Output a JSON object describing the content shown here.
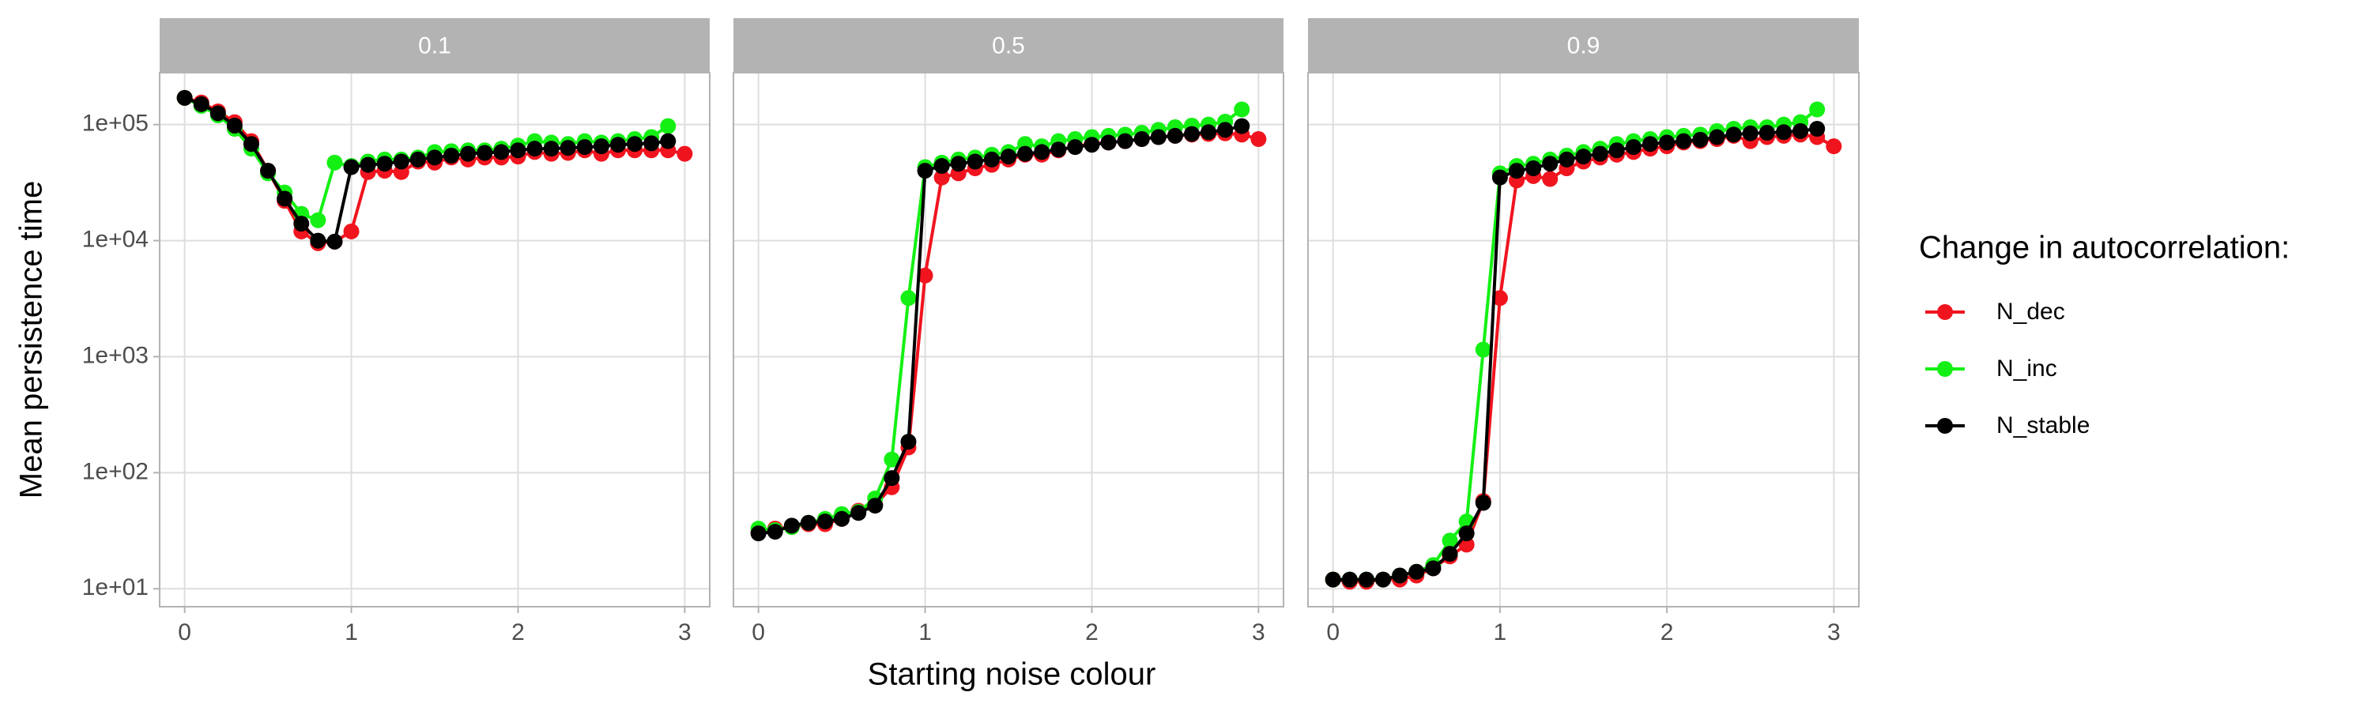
{
  "x_label": "Starting noise colour",
  "y_label": "Mean persistence time",
  "legend_title": "Change in autocorrelation:",
  "chart_data": [
    {
      "type": "line",
      "title": "0.1",
      "log_y": true,
      "grid": true,
      "x": [
        0,
        0.1,
        0.2,
        0.3,
        0.4,
        0.5,
        0.6,
        0.7,
        0.8,
        0.9,
        1.0,
        1.1,
        1.2,
        1.3,
        1.4,
        1.5,
        1.6,
        1.7,
        1.8,
        1.9,
        2.0,
        2.1,
        2.2,
        2.3,
        2.4,
        2.5,
        2.6,
        2.7,
        2.8,
        2.9,
        3.0
      ],
      "xlim": [
        -0.15,
        3.15
      ],
      "xticks": [
        0,
        1,
        2,
        3
      ],
      "ylim": [
        7,
        280000
      ],
      "yticks": [
        {
          "value": 10,
          "label": "1e+01"
        },
        {
          "value": 100,
          "label": "1e+02"
        },
        {
          "value": 1000,
          "label": "1e+03"
        },
        {
          "value": 10000,
          "label": "1e+04"
        },
        {
          "value": 100000,
          "label": "1e+05"
        }
      ],
      "series": [
        {
          "name": "N_dec",
          "color": "#f0141e",
          "values": [
            170000,
            155000,
            130000,
            105000,
            72000,
            40000,
            22000,
            12000,
            9500,
            9800,
            12000,
            39000,
            40000,
            39000,
            48000,
            47000,
            52000,
            50000,
            52000,
            52000,
            53000,
            58000,
            56000,
            57000,
            60000,
            56000,
            60000,
            60000,
            60000,
            60000,
            56000
          ]
        },
        {
          "name": "N_inc",
          "color": "#14f014",
          "values": [
            170000,
            145000,
            120000,
            92000,
            62000,
            38000,
            26000,
            17000,
            15000,
            47000,
            44000,
            48000,
            50000,
            50000,
            52000,
            58000,
            59000,
            60000,
            60000,
            62000,
            66000,
            72000,
            70000,
            68000,
            72000,
            70000,
            72000,
            75000,
            78000,
            97000,
            null
          ]
        },
        {
          "name": "N_stable",
          "color": "#000000",
          "values": [
            170000,
            150000,
            125000,
            98000,
            68000,
            40000,
            23000,
            14000,
            10000,
            9800,
            43000,
            45000,
            46000,
            48000,
            50000,
            52000,
            54000,
            56000,
            57000,
            58000,
            60000,
            62000,
            62000,
            63000,
            64000,
            65000,
            67000,
            68000,
            69000,
            72000,
            null
          ]
        }
      ]
    },
    {
      "type": "line",
      "title": "0.5",
      "log_y": true,
      "grid": true,
      "x": [
        0,
        0.1,
        0.2,
        0.3,
        0.4,
        0.5,
        0.6,
        0.7,
        0.8,
        0.9,
        1.0,
        1.1,
        1.2,
        1.3,
        1.4,
        1.5,
        1.6,
        1.7,
        1.8,
        1.9,
        2.0,
        2.1,
        2.2,
        2.3,
        2.4,
        2.5,
        2.6,
        2.7,
        2.8,
        2.9,
        3.0
      ],
      "xlim": [
        -0.15,
        3.15
      ],
      "xticks": [
        0,
        1,
        2,
        3
      ],
      "ylim": [
        7,
        280000
      ],
      "yticks": [
        10,
        100,
        1000,
        10000,
        100000
      ],
      "series": [
        {
          "name": "N_dec",
          "color": "#f0141e",
          "values": [
            31,
            33,
            34,
            36,
            36,
            40,
            47,
            53,
            75,
            165,
            5000,
            35000,
            38000,
            42000,
            45000,
            50000,
            55000,
            55000,
            60000,
            65000,
            68000,
            70000,
            72000,
            75000,
            78000,
            80000,
            82000,
            83000,
            84000,
            82000,
            75000
          ]
        },
        {
          "name": "N_inc",
          "color": "#14f014",
          "values": [
            33,
            32,
            34,
            37,
            40,
            44,
            46,
            60,
            130,
            3200,
            43000,
            47000,
            50000,
            52000,
            55000,
            58000,
            68000,
            65000,
            72000,
            75000,
            78000,
            80000,
            82000,
            85000,
            90000,
            95000,
            98000,
            100000,
            106000,
            135000,
            null
          ]
        },
        {
          "name": "N_stable",
          "color": "#000000",
          "values": [
            30,
            31,
            35,
            37,
            38,
            40,
            45,
            52,
            90,
            185,
            40000,
            44000,
            46000,
            48000,
            50000,
            53000,
            56000,
            58000,
            61000,
            64000,
            67000,
            70000,
            72000,
            75000,
            78000,
            80000,
            83000,
            86000,
            90000,
            97000,
            null
          ]
        }
      ]
    },
    {
      "type": "line",
      "title": "0.9",
      "log_y": true,
      "grid": true,
      "x": [
        0,
        0.1,
        0.2,
        0.3,
        0.4,
        0.5,
        0.6,
        0.7,
        0.8,
        0.9,
        1.0,
        1.1,
        1.2,
        1.3,
        1.4,
        1.5,
        1.6,
        1.7,
        1.8,
        1.9,
        2.0,
        2.1,
        2.2,
        2.3,
        2.4,
        2.5,
        2.6,
        2.7,
        2.8,
        2.9,
        3.0
      ],
      "xlim": [
        -0.15,
        3.15
      ],
      "xticks": [
        0,
        1,
        2,
        3
      ],
      "ylim": [
        7,
        280000
      ],
      "yticks": [
        10,
        100,
        1000,
        10000,
        100000
      ],
      "series": [
        {
          "name": "N_dec",
          "color": "#f0141e",
          "values": [
            12,
            11.5,
            11.5,
            12,
            12,
            13,
            15,
            19,
            24,
            57,
            3200,
            33000,
            36000,
            34000,
            42000,
            48000,
            52000,
            55000,
            58000,
            62000,
            65000,
            70000,
            72000,
            75000,
            80000,
            72000,
            78000,
            80000,
            82000,
            78000,
            65000
          ]
        },
        {
          "name": "N_inc",
          "color": "#14f014",
          "values": [
            12,
            12,
            12,
            12,
            13,
            14,
            16,
            26,
            38,
            1150,
            38000,
            44000,
            46000,
            50000,
            54000,
            58000,
            62000,
            68000,
            72000,
            75000,
            78000,
            80000,
            82000,
            88000,
            92000,
            95000,
            95000,
            100000,
            105000,
            135000,
            null
          ]
        },
        {
          "name": "N_stable",
          "color": "#000000",
          "values": [
            12,
            12,
            12,
            12,
            13,
            14,
            15,
            20,
            30,
            55,
            35000,
            40000,
            42000,
            46000,
            50000,
            53000,
            56000,
            60000,
            64000,
            68000,
            70000,
            72000,
            74000,
            78000,
            82000,
            84000,
            85000,
            86000,
            88000,
            92000,
            null
          ]
        }
      ]
    }
  ]
}
